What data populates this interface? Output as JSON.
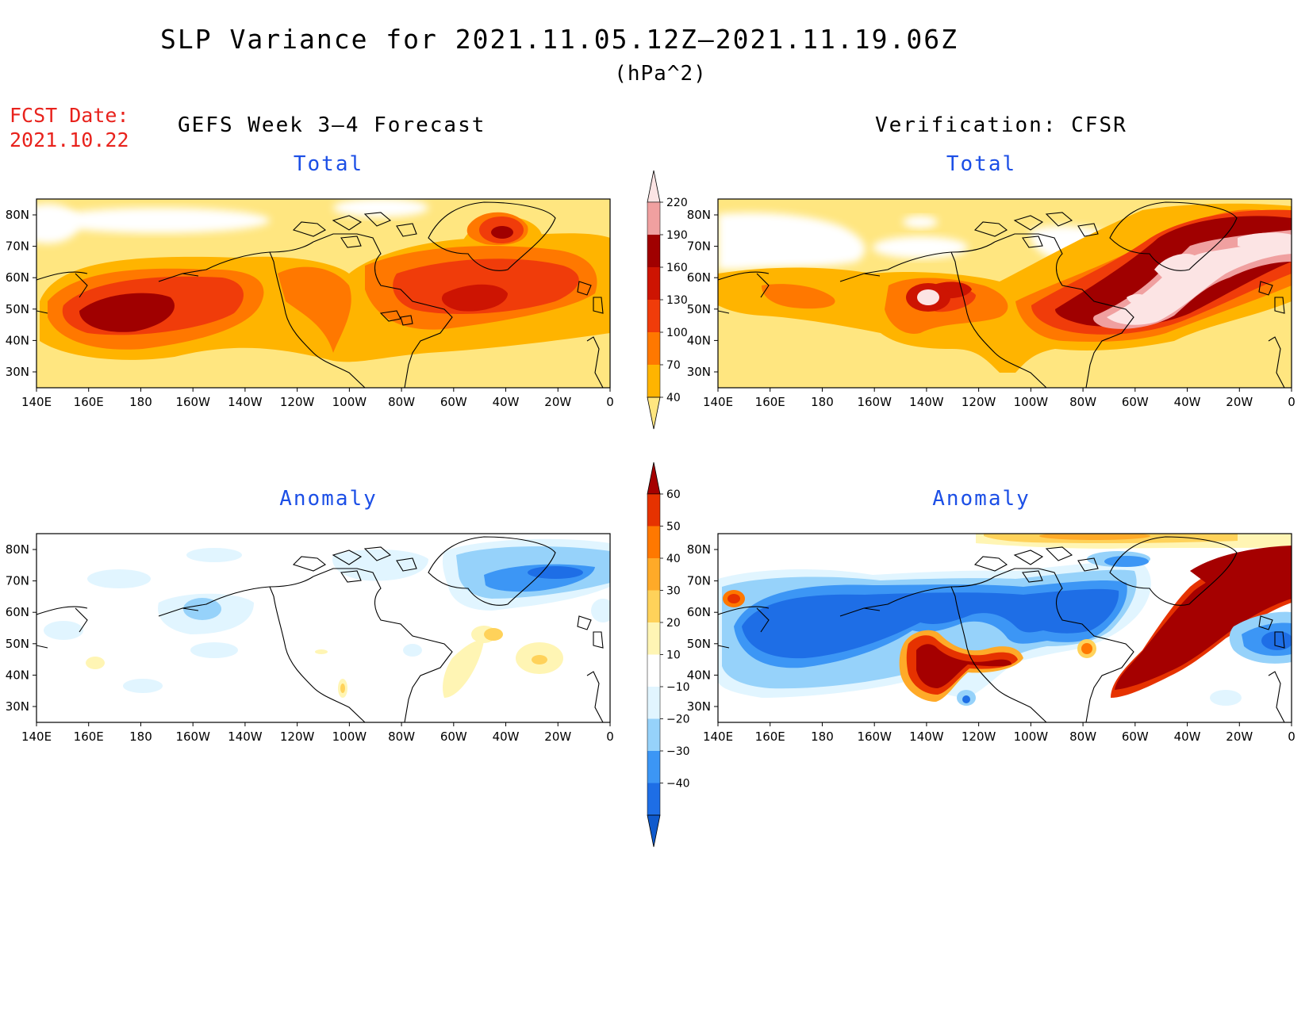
{
  "title": "SLP Variance for 2021.11.05.12Z–2021.11.19.06Z",
  "units": "(hPa^2)",
  "fcst_label": "FCST Date:",
  "fcst_date": "2021.10.22",
  "left_heading": "GEFS Week 3–4 Forecast",
  "right_heading": "Verification: CFSR",
  "panels": [
    {
      "label": "Total"
    },
    {
      "label": "Total"
    },
    {
      "label": "Anomaly"
    },
    {
      "label": "Anomaly"
    }
  ],
  "lat_labels": [
    "80N",
    "70N",
    "60N",
    "50N",
    "40N",
    "30N"
  ],
  "lon_labels": [
    "140E",
    "160E",
    "180",
    "160W",
    "140W",
    "120W",
    "100W",
    "80W",
    "60W",
    "40W",
    "20W",
    "0"
  ],
  "total_colorbar": {
    "levels": [
      "40",
      "70",
      "100",
      "130",
      "160",
      "190",
      "220"
    ],
    "colors": [
      "#ffe680",
      "#ffb400",
      "#ff7800",
      "#f03c0a",
      "#cd1402",
      "#a00000",
      "#f0a0a0",
      "#fce4e4"
    ]
  },
  "anomaly_colorbar": {
    "levels": [
      "−40",
      "−30",
      "−20",
      "−10",
      "10",
      "20",
      "30",
      "40",
      "50",
      "60"
    ],
    "colors": [
      "#0f5acd",
      "#1e6ee6",
      "#3c96f5",
      "#96d2fa",
      "#e1f5ff",
      "#ffffff",
      "#fff5b4",
      "#ffd25a",
      "#ffaa28",
      "#ff7800",
      "#e63200",
      "#a50000"
    ]
  }
}
